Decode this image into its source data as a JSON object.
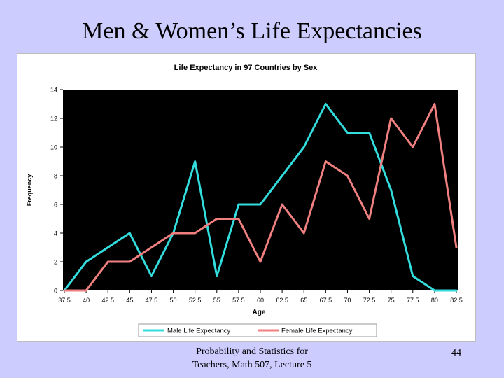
{
  "slide": {
    "title": "Men & Women’s Life Expectancies",
    "footer_line1": "Probability and Statistics for",
    "footer_line2": "Teachers, Math 507, Lecture 5",
    "page_number": "44"
  },
  "chart_data": {
    "type": "line",
    "title": "Life Expectancy in 97 Countries by Sex",
    "xlabel": "Age",
    "ylabel": "Frequency",
    "categories": [
      "37.5",
      "40",
      "42.5",
      "45",
      "47.5",
      "50",
      "52.5",
      "55",
      "57.5",
      "60",
      "62.5",
      "65",
      "67.5",
      "70",
      "72.5",
      "75",
      "77.5",
      "80",
      "82.5"
    ],
    "ylim": [
      0,
      14
    ],
    "yticks": [
      "0",
      "2",
      "4",
      "6",
      "8",
      "10",
      "12",
      "14"
    ],
    "plot_background": "#000000",
    "grid": false,
    "legend_position": "bottom",
    "series": [
      {
        "name": "Male Life Expectancy",
        "color": "#33dddd",
        "values": [
          0,
          2,
          3,
          4,
          1,
          4,
          9,
          1,
          6,
          6,
          8,
          10,
          13,
          11,
          11,
          7,
          1,
          0,
          0
        ]
      },
      {
        "name": "Female Life Expectancy",
        "color": "#f08080",
        "values": [
          0,
          0,
          2,
          2,
          3,
          4,
          4,
          5,
          5,
          2,
          6,
          4,
          9,
          8,
          5,
          12,
          10,
          13,
          3
        ]
      }
    ]
  }
}
